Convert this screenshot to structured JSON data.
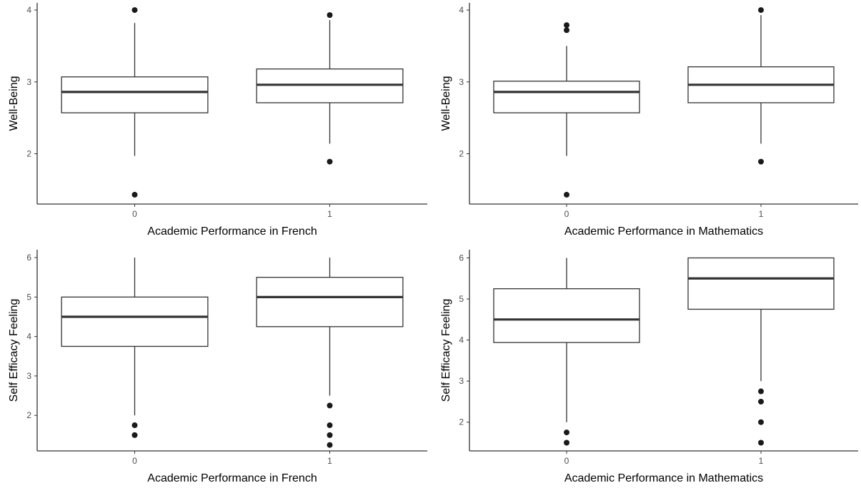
{
  "colors": {
    "box_line": "#333333",
    "axis": "#333333",
    "points": "#1a1a1a",
    "background": "#ffffff"
  },
  "chart_data": [
    {
      "type": "box",
      "xlabel": "Academic Performance in French",
      "ylabel": "Well-Being",
      "ylim": [
        1.3,
        4.1
      ],
      "yticks": [
        2,
        3,
        4
      ],
      "grid": false,
      "categories": [
        "0",
        "1"
      ],
      "boxes": [
        {
          "category": "0",
          "lower_whisker": 1.97,
          "q1": 2.57,
          "median": 2.86,
          "q3": 3.07,
          "upper_whisker": 3.82,
          "outliers": [
            4.0,
            1.43
          ]
        },
        {
          "category": "1",
          "lower_whisker": 2.14,
          "q1": 2.71,
          "median": 2.96,
          "q3": 3.18,
          "upper_whisker": 3.86,
          "outliers": [
            3.93,
            1.89
          ]
        }
      ]
    },
    {
      "type": "box",
      "xlabel": "Academic Performance in Mathematics",
      "ylabel": "Well-Being",
      "ylim": [
        1.3,
        4.1
      ],
      "yticks": [
        2,
        3,
        4
      ],
      "grid": false,
      "categories": [
        "0",
        "1"
      ],
      "boxes": [
        {
          "category": "0",
          "lower_whisker": 1.97,
          "q1": 2.57,
          "median": 2.86,
          "q3": 3.01,
          "upper_whisker": 3.5,
          "outliers": [
            3.79,
            3.72,
            1.43
          ]
        },
        {
          "category": "1",
          "lower_whisker": 2.14,
          "q1": 2.71,
          "median": 2.96,
          "q3": 3.21,
          "upper_whisker": 3.93,
          "outliers": [
            4.0,
            1.89
          ]
        }
      ]
    },
    {
      "type": "box",
      "xlabel": "Academic Performance in French",
      "ylabel": "Self Efficacy Feeling",
      "ylim": [
        1.1,
        6.2
      ],
      "yticks": [
        2,
        3,
        4,
        5,
        6
      ],
      "grid": false,
      "categories": [
        "0",
        "1"
      ],
      "boxes": [
        {
          "category": "0",
          "lower_whisker": 2.0,
          "q1": 3.75,
          "median": 4.5,
          "q3": 5.0,
          "upper_whisker": 6.0,
          "outliers": [
            1.75,
            1.5
          ]
        },
        {
          "category": "1",
          "lower_whisker": 2.5,
          "q1": 4.25,
          "median": 5.0,
          "q3": 5.5,
          "upper_whisker": 6.0,
          "outliers": [
            2.25,
            1.75,
            1.5,
            1.25
          ]
        }
      ]
    },
    {
      "type": "box",
      "xlabel": "Academic Performance in Mathematics",
      "ylabel": "Self Efficacy Feeling",
      "ylim": [
        1.3,
        6.2
      ],
      "yticks": [
        2,
        3,
        4,
        5,
        6
      ],
      "grid": false,
      "categories": [
        "0",
        "1"
      ],
      "boxes": [
        {
          "category": "0",
          "lower_whisker": 2.0,
          "q1": 3.94,
          "median": 4.5,
          "q3": 5.25,
          "upper_whisker": 6.0,
          "outliers": [
            1.75,
            1.5
          ]
        },
        {
          "category": "1",
          "lower_whisker": 3.0,
          "q1": 4.75,
          "median": 5.5,
          "q3": 6.0,
          "upper_whisker": 6.0,
          "outliers": [
            2.75,
            2.5,
            2.0,
            1.5
          ]
        }
      ]
    }
  ]
}
